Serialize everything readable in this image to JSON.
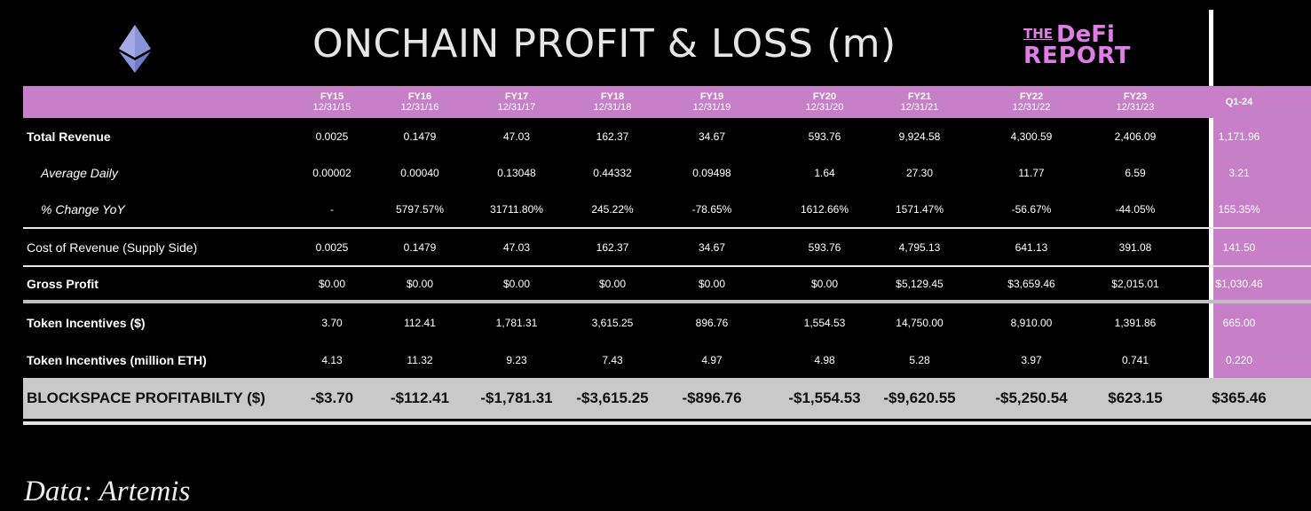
{
  "title": "ONCHAIN PROFIT & LOSS (m)",
  "brand": {
    "the": "THE",
    "defi": "DeFi",
    "report": "REPORT"
  },
  "columns": [
    {
      "fy": "FY15",
      "date": "12/31/15"
    },
    {
      "fy": "FY16",
      "date": "12/31/16"
    },
    {
      "fy": "FY17",
      "date": "12/31/17"
    },
    {
      "fy": "FY18",
      "date": "12/31/18"
    },
    {
      "fy": "FY19",
      "date": "12/31/19"
    },
    {
      "fy": "FY20",
      "date": "12/31/20"
    },
    {
      "fy": "FY21",
      "date": "12/31/21"
    },
    {
      "fy": "FY22",
      "date": "12/31/22"
    },
    {
      "fy": "FY23",
      "date": "12/31/23"
    },
    {
      "fy": "Q1-24",
      "date": ""
    }
  ],
  "rows": [
    {
      "label": "Total Revenue",
      "values": [
        "0.0025",
        "0.1479",
        "47.03",
        "162.37",
        "34.67",
        "593.76",
        "9,924.58",
        "4,300.59",
        "2,406.09",
        "1,171.96"
      ]
    },
    {
      "label": "Average Daily",
      "values": [
        "0.00002",
        "0.00040",
        "0.13048",
        "0.44332",
        "0.09498",
        "1.64",
        "27.30",
        "11.77",
        "6.59",
        "3.21"
      ]
    },
    {
      "label": "% Change YoY",
      "values": [
        "-",
        "5797.57%",
        "31711.80%",
        "245.22%",
        "-78.65%",
        "1612.66%",
        "1571.47%",
        "-56.67%",
        "-44.05%",
        "155.35%"
      ]
    },
    {
      "label": "Cost of Revenue (Supply Side)",
      "values": [
        "0.0025",
        "0.1479",
        "47.03",
        "162.37",
        "34.67",
        "593.76",
        "4,795.13",
        "641.13",
        "391.08",
        "141.50"
      ]
    },
    {
      "label": "Gross Profit",
      "values": [
        "$0.00",
        "$0.00",
        "$0.00",
        "$0.00",
        "$0.00",
        "$0.00",
        "$5,129.45",
        "$3,659.46",
        "$2,015.01",
        "$1,030.46"
      ]
    },
    {
      "label": "Token Incentives ($)",
      "values": [
        "3.70",
        "112.41",
        "1,781.31",
        "3,615.25",
        "896.76",
        "1,554.53",
        "14,750.00",
        "8,910.00",
        "1,391.86",
        "665.00"
      ]
    },
    {
      "label": "Token Incentives (million ETH)",
      "values": [
        "4.13",
        "11.32",
        "9.23",
        "7.43",
        "4.97",
        "4.98",
        "5.28",
        "3.97",
        "0.741",
        "0.220"
      ]
    },
    {
      "label": "BLOCKSPACE PROFITABILTY ($)",
      "values": [
        "-$3.70",
        "-$112.41",
        "-$1,781.31",
        "-$3,615.25",
        "-$896.76",
        "-$1,554.53",
        "-$9,620.55",
        "-$5,250.54",
        "$623.15",
        "$365.46"
      ]
    }
  ],
  "source": "Data: Artemis",
  "colors": {
    "accent": "#c77fc8",
    "final_row": "#c9c9c9",
    "brand": "#e07ee8",
    "eth": "#8a92d8"
  }
}
